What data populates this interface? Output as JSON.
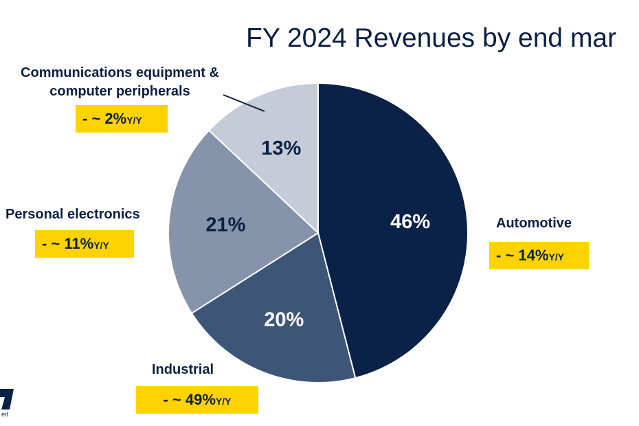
{
  "chart_data": {
    "type": "pie",
    "title": "FY 2024 Revenues by end mar",
    "slices": [
      {
        "label": "Automotive",
        "value": 46,
        "value_label": "46%",
        "color": "#0a2247",
        "text_color": "#ffffff",
        "change_prefix": "- ~ 14%",
        "change_suffix": "Y/Y"
      },
      {
        "label": "Industrial",
        "value": 20,
        "value_label": "20%",
        "color": "#3d5678",
        "text_color": "#ffffff",
        "change_prefix": "- ~ 49%",
        "change_suffix": "Y/Y"
      },
      {
        "label": "Personal electronics",
        "value": 21,
        "value_label": "21%",
        "color": "#8594aa",
        "text_color": "#0a1f44",
        "change_prefix": "- ~ 11%",
        "change_suffix": "Y/Y"
      },
      {
        "label": "Communications equipment & computer peripherals",
        "label_line1": "Communications equipment &",
        "label_line2": "computer peripherals",
        "value": 13,
        "value_label": "13%",
        "color": "#c5ccd8",
        "text_color": "#0a1f44",
        "change_prefix": "- ~ 2%",
        "change_suffix": "Y/Y"
      }
    ]
  },
  "logo": {
    "text": "ed",
    "color": "#0a2247"
  }
}
